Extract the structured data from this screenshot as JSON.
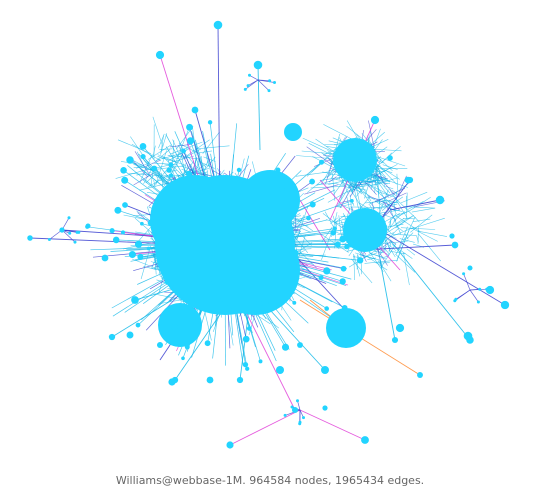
{
  "caption": "Williams@webbase-1M. 964584 nodes, 1965434 edges.",
  "colors": {
    "node": "#22d4ff",
    "node_dark": "#11b8e8",
    "edge_blue": "#3a3fd0",
    "edge_magenta": "#e040d8",
    "edge_orange": "#ff8a30",
    "background": "#ffffff"
  }
}
